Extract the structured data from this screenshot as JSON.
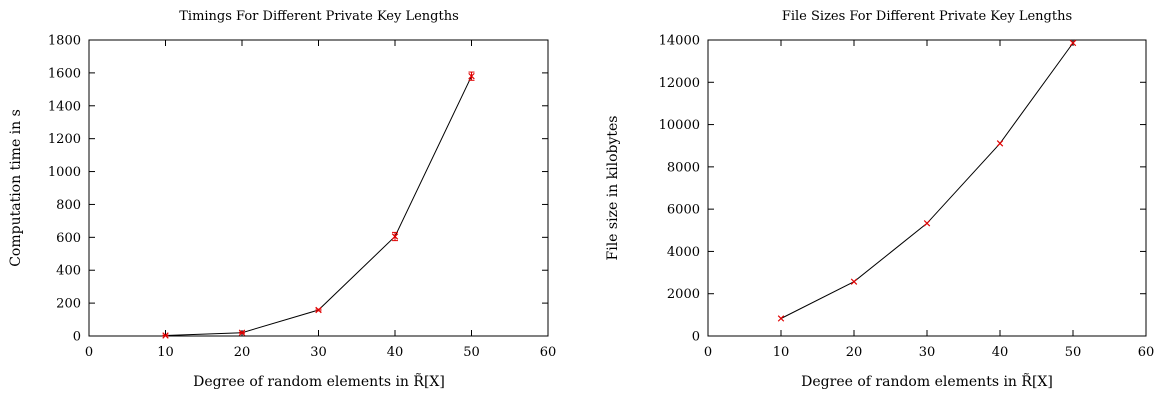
{
  "chart_data": [
    {
      "type": "line",
      "title": "Timings For Different Private Key Lengths",
      "xlabel": "Degree of random elements in R̃[X]",
      "ylabel": "Computation time in s",
      "xlim": [
        0,
        60
      ],
      "ylim": [
        0,
        1800
      ],
      "xticks": [
        0,
        10,
        20,
        30,
        40,
        50,
        60
      ],
      "yticks": [
        0,
        200,
        400,
        600,
        800,
        1000,
        1200,
        1400,
        1600,
        1800
      ],
      "grid": false,
      "line_color": "#000000",
      "marker_color": "#e00000",
      "series": [
        {
          "x": [
            10,
            20,
            30,
            40,
            50
          ],
          "y": [
            3,
            20,
            158,
            605,
            1580
          ],
          "err": [
            2,
            3,
            5,
            25,
            25
          ]
        }
      ]
    },
    {
      "type": "line",
      "title": "File Sizes For Different Private Key Lengths",
      "xlabel": "Degree of random elements in R̃[X]",
      "ylabel": "File size in kilobytes",
      "xlim": [
        0,
        60
      ],
      "ylim": [
        0,
        14000
      ],
      "xticks": [
        0,
        10,
        20,
        30,
        40,
        50,
        60
      ],
      "yticks": [
        0,
        2000,
        4000,
        6000,
        8000,
        10000,
        12000,
        14000
      ],
      "grid": false,
      "line_color": "#000000",
      "marker_color": "#e00000",
      "series": [
        {
          "x": [
            10,
            20,
            30,
            40,
            50
          ],
          "y": [
            830,
            2570,
            5330,
            9110,
            13860
          ],
          "err": [
            0,
            0,
            0,
            0,
            0
          ]
        }
      ]
    }
  ]
}
